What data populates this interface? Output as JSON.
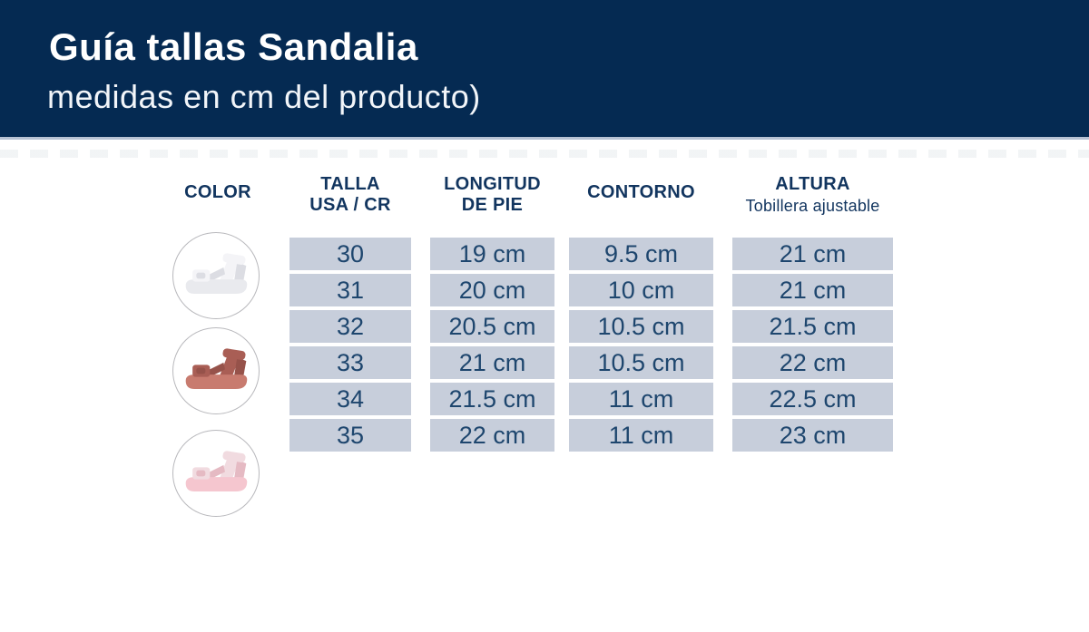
{
  "header": {
    "title": "Guía tallas Sandalia",
    "subtitle": "medidas en cm del producto)",
    "bg_color": "#052a52",
    "title_color": "#ffffff"
  },
  "table": {
    "columns": [
      {
        "key": "color",
        "label": "COLOR"
      },
      {
        "key": "talla",
        "label": "TALLA",
        "label2": "USA / CR"
      },
      {
        "key": "longitud",
        "label": "LONGITUD",
        "label2": "DE PIE"
      },
      {
        "key": "contorno",
        "label": "CONTORNO"
      },
      {
        "key": "altura",
        "label": "ALTURA",
        "sublabel": "Tobillera ajustable"
      }
    ],
    "rows": [
      {
        "talla": "30",
        "longitud": "19 cm",
        "contorno": "9.5 cm",
        "altura": "21 cm"
      },
      {
        "talla": "31",
        "longitud": "20 cm",
        "contorno": "10 cm",
        "altura": "21 cm"
      },
      {
        "talla": "32",
        "longitud": "20.5 cm",
        "contorno": "10.5 cm",
        "altura": "21.5 cm"
      },
      {
        "talla": "33",
        "longitud": "21 cm",
        "contorno": "10.5 cm",
        "altura": "22 cm"
      },
      {
        "talla": "34",
        "longitud": "21.5 cm",
        "contorno": "11 cm",
        "altura": "22.5 cm"
      },
      {
        "talla": "35",
        "longitud": "22 cm",
        "contorno": "11 cm",
        "altura": "23 cm"
      }
    ],
    "cell_bg": "#c7cedb",
    "cell_text": "#1e466e",
    "header_text": "#12355f"
  },
  "swatches": [
    {
      "name": "white-sandal",
      "strap": "#f4f4f7",
      "sole": "#e9eaee",
      "shade": "#dcdde3"
    },
    {
      "name": "mauve-sandal",
      "strap": "#a95e55",
      "sole": "#c87b6f",
      "shade": "#96524a"
    },
    {
      "name": "pink-sandal",
      "strap": "#f1dbe0",
      "sole": "#f5c6cf",
      "shade": "#e5bac3"
    }
  ],
  "chart_data": {
    "type": "table",
    "title": "Guía tallas Sandalia",
    "subtitle": "medidas en cm del producto)",
    "columns": [
      "TALLA USA / CR",
      "LONGITUD DE PIE",
      "CONTORNO",
      "ALTURA (Tobillera ajustable)"
    ],
    "rows": [
      [
        "30",
        "19 cm",
        "9.5 cm",
        "21 cm"
      ],
      [
        "31",
        "20 cm",
        "10 cm",
        "21 cm"
      ],
      [
        "32",
        "20.5 cm",
        "10.5 cm",
        "21.5 cm"
      ],
      [
        "33",
        "21 cm",
        "10.5 cm",
        "22 cm"
      ],
      [
        "34",
        "21.5 cm",
        "11 cm",
        "22.5 cm"
      ],
      [
        "35",
        "22 cm",
        "11 cm",
        "23 cm"
      ]
    ]
  }
}
